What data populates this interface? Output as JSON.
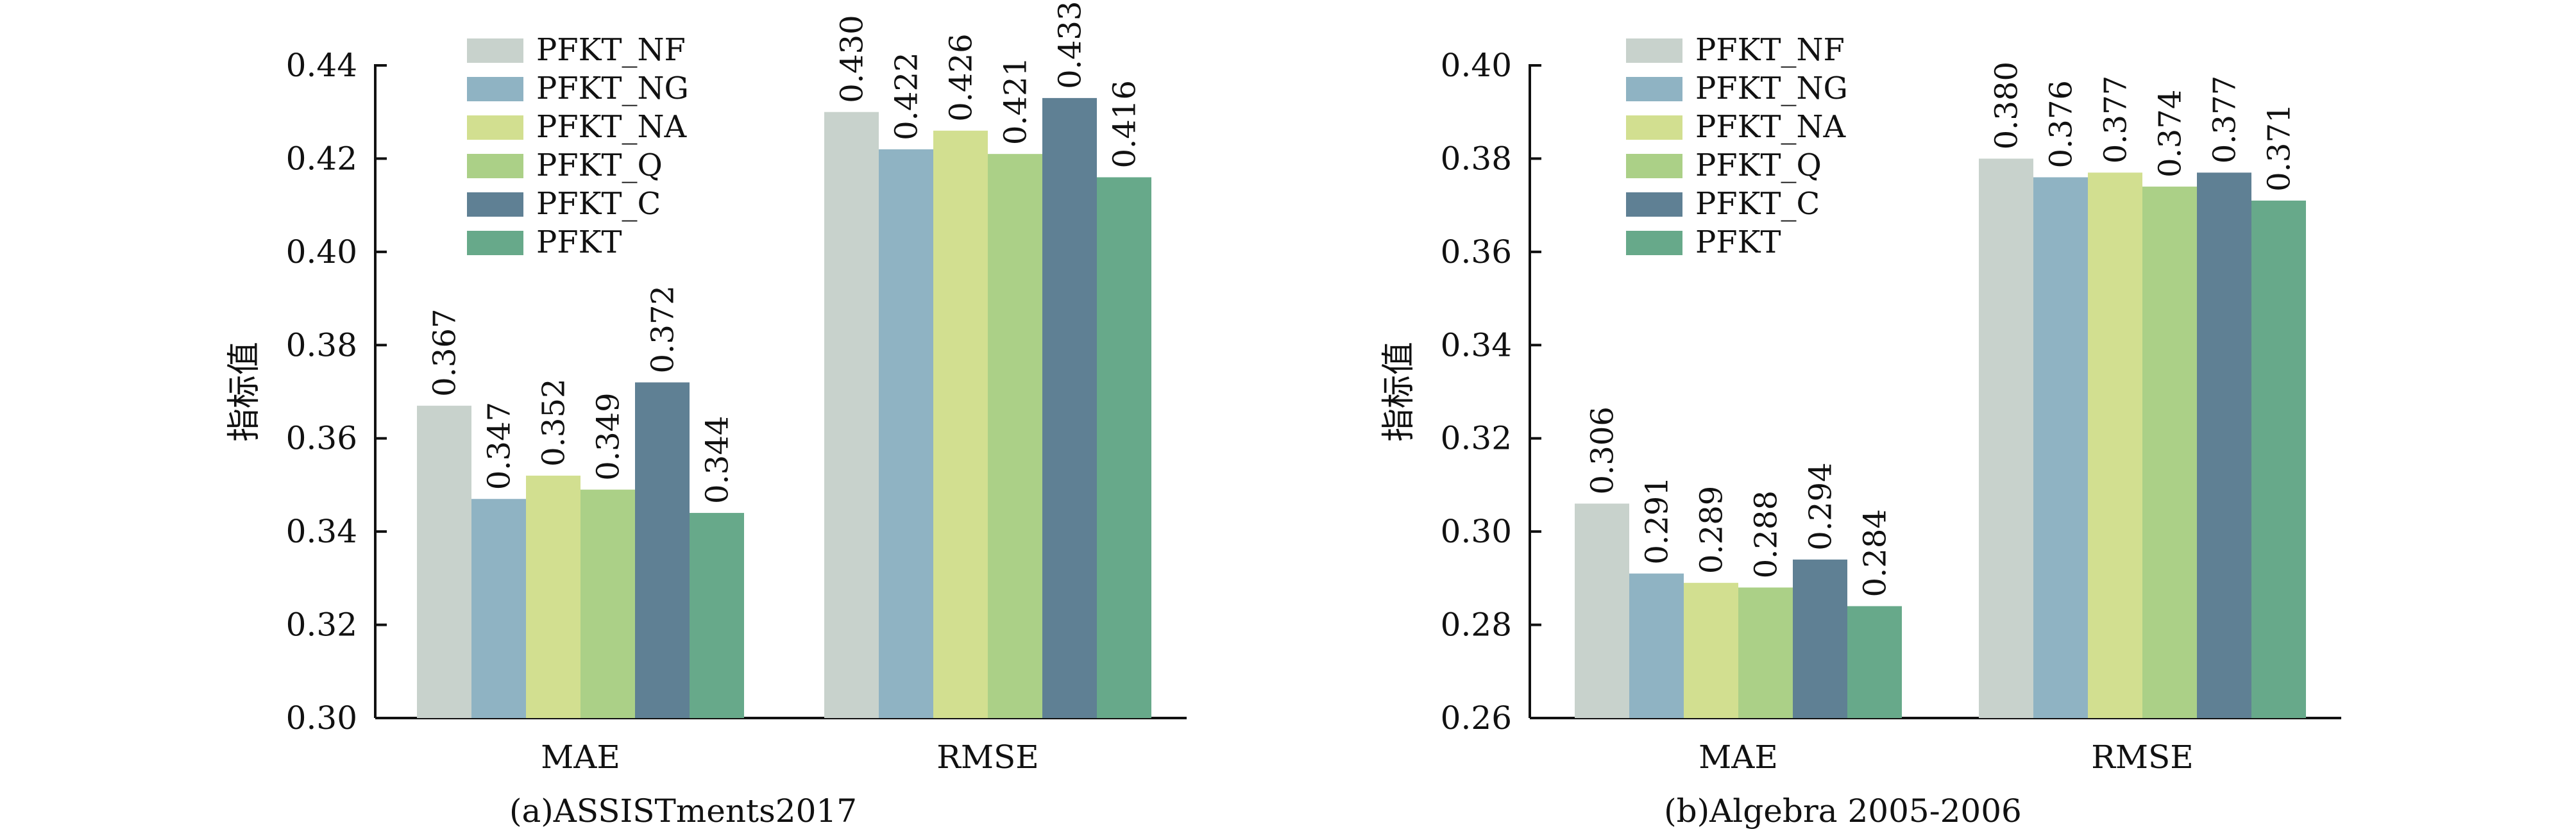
{
  "chart_data": [
    {
      "type": "bar",
      "title": "(a)ASSISTments2017",
      "ylabel": "指标值",
      "xlabel": "",
      "categories": [
        "MAE",
        "RMSE"
      ],
      "ylim": [
        0.3,
        0.44
      ],
      "yticks": [
        "0.30",
        "0.32",
        "0.34",
        "0.36",
        "0.38",
        "0.40",
        "0.42",
        "0.44"
      ],
      "series": [
        {
          "name": "PFKT_NF",
          "color": "#c8d2cc",
          "values": [
            0.367,
            0.43
          ],
          "labels": [
            "0.367",
            "0.430"
          ]
        },
        {
          "name": "PFKT_NG",
          "color": "#8fb3c3",
          "values": [
            0.347,
            0.422
          ],
          "labels": [
            "0.347",
            "0.422"
          ]
        },
        {
          "name": "PFKT_NA",
          "color": "#d2df90",
          "values": [
            0.352,
            0.426
          ],
          "labels": [
            "0.352",
            "0.426"
          ]
        },
        {
          "name": "PFKT_Q",
          "color": "#abd087",
          "values": [
            0.349,
            0.421
          ],
          "labels": [
            "0.349",
            "0.421"
          ]
        },
        {
          "name": "PFKT_C",
          "color": "#5f8094",
          "values": [
            0.372,
            0.433
          ],
          "labels": [
            "0.372",
            "0.433"
          ]
        },
        {
          "name": "PFKT",
          "color": "#67a98a",
          "values": [
            0.344,
            0.416
          ],
          "labels": [
            "0.344",
            "0.416"
          ]
        }
      ],
      "legend_position": "top-left",
      "grid": false
    },
    {
      "type": "bar",
      "title": "(b)Algebra 2005-2006",
      "ylabel": "指标值",
      "xlabel": "",
      "categories": [
        "MAE",
        "RMSE"
      ],
      "ylim": [
        0.26,
        0.4
      ],
      "yticks": [
        "0.26",
        "0.28",
        "0.30",
        "0.32",
        "0.34",
        "0.36",
        "0.38",
        "0.40"
      ],
      "series": [
        {
          "name": "PFKT_NF",
          "color": "#c8d2cc",
          "values": [
            0.306,
            0.38
          ],
          "labels": [
            "0.306",
            "0.380"
          ]
        },
        {
          "name": "PFKT_NG",
          "color": "#8fb3c3",
          "values": [
            0.291,
            0.376
          ],
          "labels": [
            "0.291",
            "0.376"
          ]
        },
        {
          "name": "PFKT_NA",
          "color": "#d2df90",
          "values": [
            0.289,
            0.377
          ],
          "labels": [
            "0.289",
            "0.377"
          ]
        },
        {
          "name": "PFKT_Q",
          "color": "#abd087",
          "values": [
            0.288,
            0.374
          ],
          "labels": [
            "0.288",
            "0.374"
          ]
        },
        {
          "name": "PFKT_C",
          "color": "#5f8094",
          "values": [
            0.294,
            0.377
          ],
          "labels": [
            "0.294",
            "0.377"
          ]
        },
        {
          "name": "PFKT",
          "color": "#67a98a",
          "values": [
            0.284,
            0.371
          ],
          "labels": [
            "0.284",
            "0.371"
          ]
        }
      ],
      "legend_position": "top-left",
      "grid": false
    }
  ]
}
